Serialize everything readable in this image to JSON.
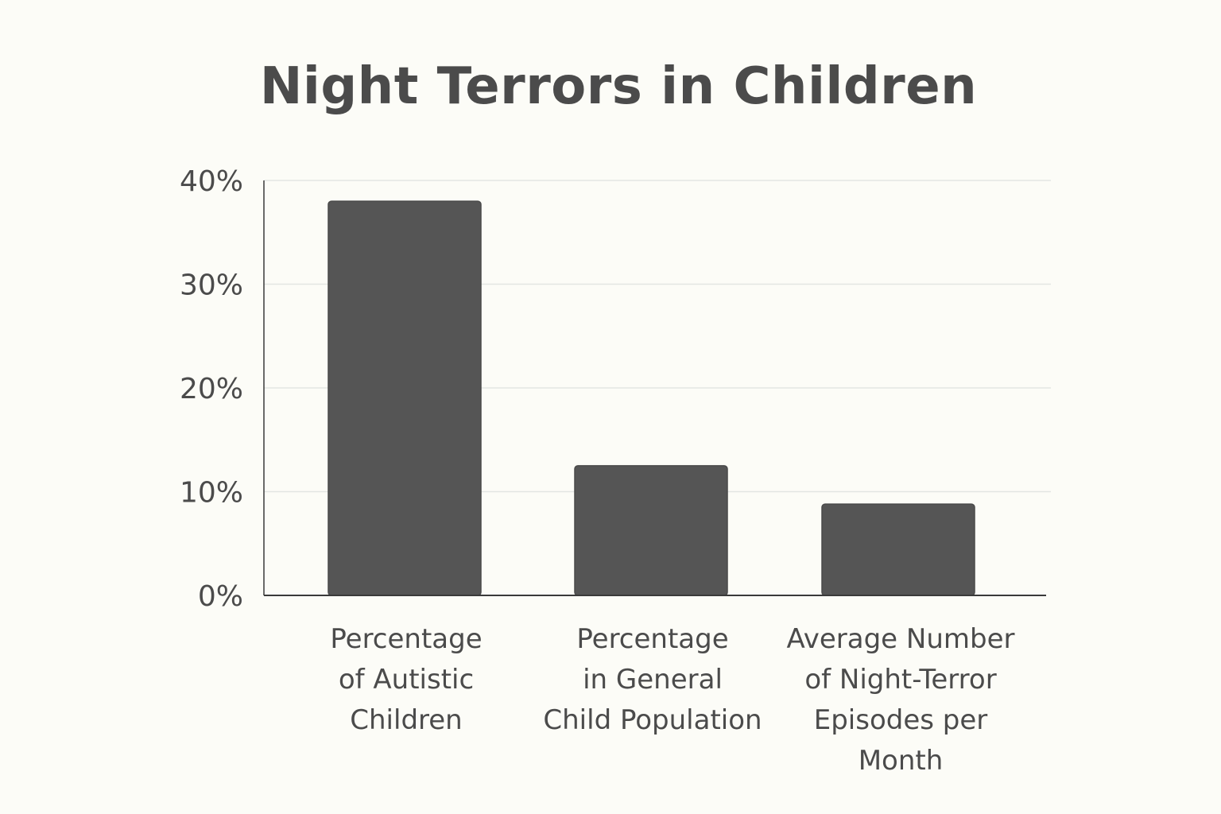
{
  "chart_data": {
    "type": "bar",
    "title": "Night Terrors in Children",
    "xlabel": "",
    "ylabel": "",
    "categories": [
      [
        "Percentage",
        "of Autistic",
        "Children"
      ],
      [
        "Percentage",
        "in General",
        "Child Population"
      ],
      [
        "Average Number",
        "of Night-Terror",
        "Episodes per",
        "Month"
      ]
    ],
    "values": [
      38,
      12.5,
      8.8
    ],
    "ylim": [
      0,
      40
    ],
    "yticks": [
      0,
      10,
      20,
      30,
      40
    ],
    "ytick_labels": [
      "0%",
      "10%",
      "20%",
      "30%",
      "40%"
    ],
    "grid": true,
    "legend": "none",
    "colors": {
      "bar": "#555555",
      "bar_edge": "#4a4a4a",
      "grid": "#e3e6e3",
      "axis": "#3a3a3a",
      "background": "#fcfcf7",
      "text": "#4b4b4b"
    }
  }
}
